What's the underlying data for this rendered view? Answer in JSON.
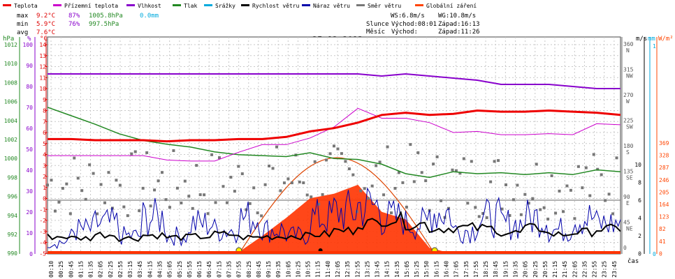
{
  "chart_data": {
    "type": "line",
    "date": "25.12.2013",
    "legend": [
      {
        "name": "Teplota",
        "color": "#ee0000"
      },
      {
        "name": "Přízemní teplota",
        "color": "#cc00cc"
      },
      {
        "name": "Vlhkost",
        "color": "#8800cc"
      },
      {
        "name": "Tlak",
        "color": "#228822"
      },
      {
        "name": "Srážky",
        "color": "#00aadd"
      },
      {
        "name": "Rychlost větru",
        "color": "#000000"
      },
      {
        "name": "Náraz větru",
        "color": "#0000aa"
      },
      {
        "name": "Směr větru",
        "color": "#777777"
      },
      {
        "name": "Globální záření",
        "color": "#ff4400"
      }
    ],
    "stats": {
      "max": {
        "label": "max",
        "temp": "9.2°C",
        "hum": "87%",
        "press": "1005.8hPa",
        "rain": "0.0mm"
      },
      "min": {
        "label": "min",
        "temp": "5.9°C",
        "hum": "76%",
        "press": "997.5hPa"
      },
      "avg": {
        "label": "avg",
        "temp": "7.6°C"
      }
    },
    "info": {
      "ws": "WS:6.8m/s",
      "wg": "WG:10.8m/s",
      "slunce_label": "Slunce",
      "vychod_label": "Východ:08:01",
      "zapad_label": "Západ:16:13",
      "mesic_label": "Měsíc",
      "mesic_vychod": "Východ:",
      "mesic_zapad": "Západ:11:26"
    },
    "axes": {
      "hpa_label": "hPa",
      "pct_label": "%",
      "c_label": "°C",
      "ms_label": "m/s",
      "mm_label": "mm",
      "wm2_label": "W/m²",
      "hpa_ticks": [
        "1012",
        "1010",
        "1008",
        "1006",
        "1004",
        "1002",
        "1000",
        "998",
        "996",
        "994",
        "992",
        "990"
      ],
      "pct_ticks": [
        "100",
        "90",
        "80",
        "70",
        "60",
        "50",
        "40",
        "30",
        "20",
        "10",
        "0"
      ],
      "c_ticks": [
        "14",
        "13",
        "12",
        "11",
        "10",
        "9",
        "8",
        "7",
        "6",
        "5",
        "4",
        "3",
        "2",
        "1",
        "0",
        "-1",
        "-2",
        "-3",
        "-4",
        "-5"
      ],
      "dir_ticks": [
        {
          "deg": "360",
          "dir": "N"
        },
        {
          "deg": "315",
          "dir": "NW"
        },
        {
          "deg": "270",
          "dir": "W"
        },
        {
          "deg": "225",
          "dir": "SW"
        },
        {
          "deg": "180",
          "dir": "S"
        },
        {
          "deg": "135",
          "dir": "SE"
        },
        {
          "deg": "90",
          "dir": "E"
        },
        {
          "deg": "45",
          "dir": "NE"
        },
        {
          "deg": "0",
          "dir": ""
        }
      ],
      "ms_ticks": [
        "10",
        "8",
        "6",
        "4",
        "2",
        "0"
      ],
      "mm_ticks": [
        "1",
        "0"
      ],
      "wm2_ticks": [
        "369",
        "328",
        "287",
        "246",
        "205",
        "164",
        "123",
        "82",
        "41",
        "0"
      ],
      "time_label": "čas",
      "time_ticks": [
        "00:10",
        "00:25",
        "00:45",
        "01:15",
        "01:35",
        "02:05",
        "02:25",
        "02:55",
        "03:15",
        "03:45",
        "04:15",
        "04:35",
        "05:05",
        "05:25",
        "05:55",
        "06:15",
        "06:45",
        "07:15",
        "07:35",
        "07:55",
        "08:25",
        "08:45",
        "09:15",
        "09:35",
        "10:05",
        "10:25",
        "10:55",
        "11:15",
        "11:40",
        "12:05",
        "12:35",
        "12:55",
        "13:25",
        "13:45",
        "14:15",
        "14:35",
        "15:05",
        "15:25",
        "15:50",
        "16:15",
        "16:40",
        "17:05",
        "17:35",
        "17:55",
        "18:25",
        "18:45",
        "19:15",
        "19:35",
        "20:05",
        "20:25",
        "20:55",
        "21:15",
        "21:45",
        "22:05",
        "22:35",
        "22:55",
        "23:25",
        "23:45"
      ]
    },
    "hours": [
      0,
      1,
      2,
      3,
      4,
      5,
      6,
      7,
      8,
      9,
      10,
      11,
      12,
      13,
      14,
      15,
      16,
      17,
      18,
      19,
      20,
      21,
      22,
      23,
      24
    ],
    "temperature_c": [
      6.1,
      6.1,
      6.0,
      6.0,
      6.0,
      5.9,
      6.0,
      6.0,
      6.1,
      6.1,
      6.3,
      6.8,
      7.1,
      7.6,
      8.3,
      8.5,
      8.3,
      8.4,
      8.7,
      8.6,
      8.6,
      8.7,
      8.6,
      8.5,
      8.3
    ],
    "ground_temp_c": [
      4.6,
      4.6,
      4.6,
      4.6,
      4.6,
      4.2,
      4.1,
      4.1,
      4.9,
      5.6,
      5.6,
      6.2,
      7.2,
      8.9,
      8.0,
      8.0,
      7.6,
      6.7,
      6.8,
      6.5,
      6.5,
      6.6,
      6.5,
      7.5,
      7.4
    ],
    "humidity_pct": [
      86,
      86,
      86,
      86,
      86,
      86,
      86,
      86,
      86,
      86,
      86,
      86,
      86,
      86,
      85,
      86,
      85,
      84,
      83,
      81,
      81,
      81,
      80,
      79,
      79
    ],
    "pressure_hpa": [
      1005.4,
      1004.5,
      1003.6,
      1002.6,
      1001.9,
      1001.5,
      1001.2,
      1000.7,
      1000.4,
      1000.3,
      1000.2,
      1000.6,
      1000.0,
      999.9,
      999.4,
      998.4,
      998.0,
      998.6,
      998.4,
      998.5,
      998.3,
      998.5,
      998.3,
      998.8,
      998.6
    ],
    "wind_speed_ms": [
      2.3,
      2.1,
      2.6,
      2.1,
      2.5,
      2.2,
      2.3,
      2.6,
      2.2,
      2.3,
      2.4,
      2.6,
      3.1,
      4.1,
      4.6,
      4.0,
      3.4,
      3.5,
      3.4,
      2.8,
      3.4,
      2.6,
      2.9,
      3.3,
      3.4
    ],
    "wind_gust_ms": [
      2,
      4,
      5,
      3,
      6,
      3,
      5,
      4,
      6,
      4,
      3,
      6,
      7,
      8,
      6,
      5,
      7,
      4,
      6,
      5,
      6,
      4,
      6,
      5,
      6
    ],
    "global_radiation_wm2": [
      0,
      0,
      0,
      0,
      0,
      0,
      0,
      0,
      5,
      60,
      120,
      185,
      200,
      230,
      140,
      115,
      20,
      0,
      0,
      0,
      0,
      0,
      0,
      0,
      0
    ],
    "solar_curve_peak_wm2": 320,
    "sunrise": "08:01",
    "sunset": "16:13"
  }
}
